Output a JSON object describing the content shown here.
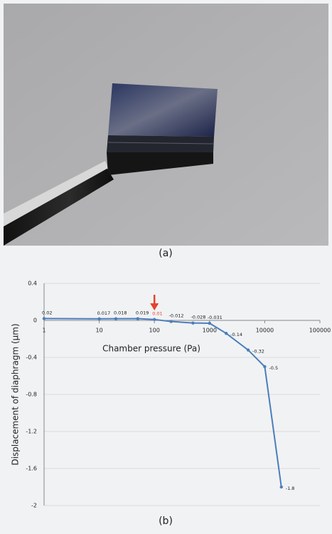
{
  "photo_caption": "(a)",
  "chart_data": {
    "type": "line",
    "caption": "(b)",
    "x_label": "Chamber pressure (Pa)",
    "y_label": "Displacement of diaphragm (μm)",
    "xscale": "log",
    "grid": true,
    "x": [
      1,
      10,
      20,
      50,
      100,
      200,
      500,
      1000,
      2000,
      5000,
      10000,
      20000
    ],
    "series": [
      {
        "color": "#4a7ebb",
        "values": [
          0.02,
          0.017,
          0.018,
          0.019,
          0.01,
          -0.012,
          -0.028,
          -0.031,
          -0.14,
          -0.32,
          -0.5,
          -1.8
        ]
      }
    ],
    "highlight": {
      "x": 100,
      "color": "#e5432d"
    },
    "xlim": [
      1,
      100000
    ],
    "xticks": [
      1,
      10,
      100,
      1000,
      10000,
      100000
    ],
    "ylim": [
      -2,
      0.4
    ],
    "yticks": [
      0.4,
      0,
      -0.4,
      -0.8,
      -1.2,
      -1.6,
      -2
    ]
  }
}
